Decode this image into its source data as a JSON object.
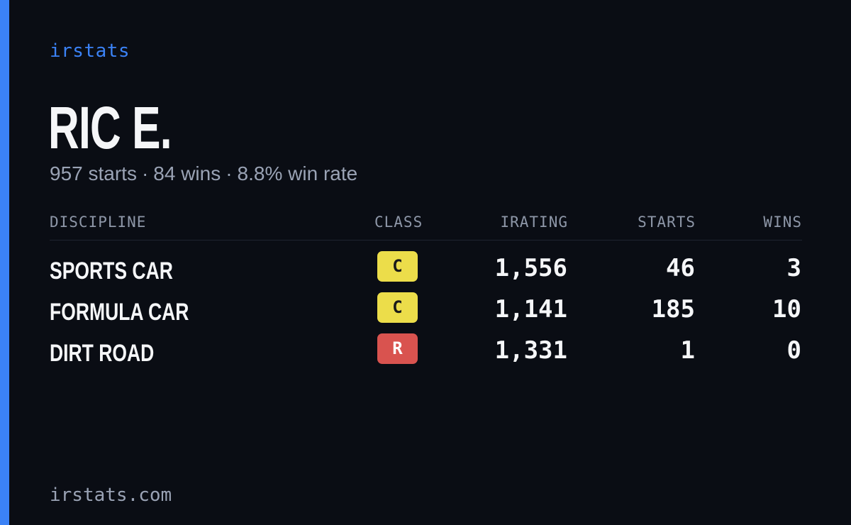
{
  "brand": "irstats",
  "driver": {
    "name": "RIC E.",
    "starts_text": "957 starts",
    "wins_text": "84 wins",
    "win_rate_text": "8.8% win rate",
    "separator": "·"
  },
  "table": {
    "headers": {
      "discipline": "DISCIPLINE",
      "class": "CLASS",
      "irating": "IRATING",
      "starts": "STARTS",
      "wins": "WINS"
    },
    "rows": [
      {
        "discipline": "SPORTS CAR",
        "class": "C",
        "class_color": "#ecdd4a",
        "class_text_color": "#1a1a1a",
        "irating": "1,556",
        "starts": "46",
        "wins": "3"
      },
      {
        "discipline": "FORMULA CAR",
        "class": "C",
        "class_color": "#ecdd4a",
        "class_text_color": "#1a1a1a",
        "irating": "1,141",
        "starts": "185",
        "wins": "10"
      },
      {
        "discipline": "DIRT ROAD",
        "class": "R",
        "class_color": "#d9534f",
        "class_text_color": "#ffffff",
        "irating": "1,331",
        "starts": "1",
        "wins": "0"
      }
    ]
  },
  "footer": "irstats.com",
  "colors": {
    "background": "#0a0d14",
    "accent": "#3b82f6",
    "muted_text": "#9aa3b5",
    "primary_text": "#f5f6f8"
  }
}
